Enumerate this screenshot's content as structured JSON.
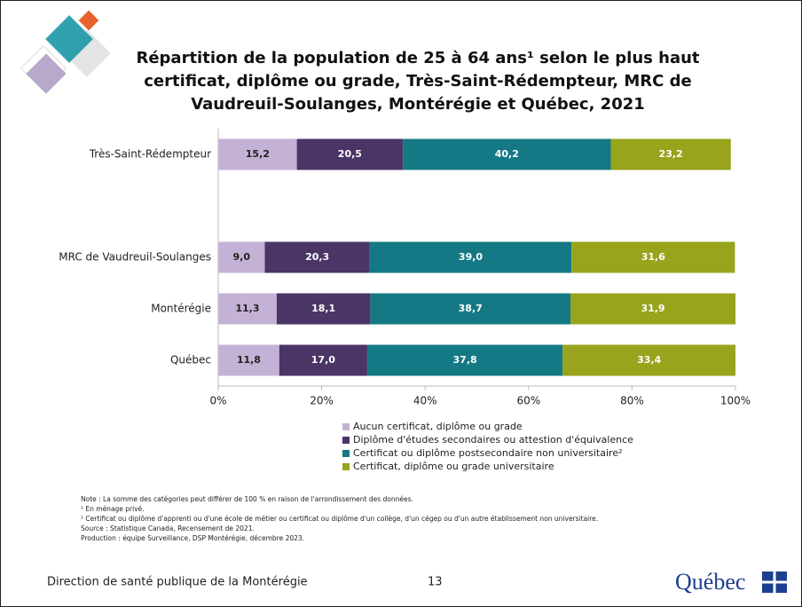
{
  "chart_data": {
    "type": "stacked-barh",
    "title": "Répartition de la population de 25 à 64 ans¹ selon le plus haut certificat, diplôme ou grade, Très-Saint-Rédempteur, MRC de Vaudreuil-Soulanges, Montérégie et Québec, 2021",
    "categories": [
      "Très-Saint-Rédempteur",
      null,
      "MRC de Vaudreuil-Soulanges",
      "Montérégie",
      "Québec"
    ],
    "series": [
      {
        "name": "Aucun certificat, diplôme ou grade",
        "color": "#c4b2d6",
        "label_color": "#222222",
        "values": [
          15.2,
          null,
          9.0,
          11.3,
          11.8
        ],
        "value_labels": [
          "15,2",
          null,
          "9,0",
          "11,3",
          "11,8"
        ]
      },
      {
        "name": "Diplôme d'études secondaires ou attestion d'équivalence",
        "color": "#4a3566",
        "label_color": "#ffffff",
        "values": [
          20.5,
          null,
          20.3,
          18.1,
          17.0
        ],
        "value_labels": [
          "20,5",
          null,
          "20,3",
          "18,1",
          "17,0"
        ]
      },
      {
        "name": "Certificat ou diplôme postsecondaire non universitaire²",
        "color": "#157985",
        "label_color": "#ffffff",
        "values": [
          40.2,
          null,
          39.0,
          38.7,
          37.8
        ],
        "value_labels": [
          "40,2",
          null,
          "39,0",
          "38,7",
          "37,8"
        ]
      },
      {
        "name": "Certificat, diplôme ou grade universitaire",
        "color": "#97a41c",
        "label_color": "#ffffff",
        "values": [
          23.2,
          null,
          31.6,
          31.9,
          33.4
        ],
        "value_labels": [
          "23,2",
          null,
          "31,6",
          "31,9",
          "33,4"
        ]
      }
    ],
    "xlim": [
      0,
      100
    ],
    "xticks": [
      {
        "value": 0,
        "label": "0%"
      },
      {
        "value": 20,
        "label": "20%"
      },
      {
        "value": 40,
        "label": "40%"
      },
      {
        "value": 60,
        "label": "60%"
      },
      {
        "value": 80,
        "label": "80%"
      },
      {
        "value": 100,
        "label": "100%"
      }
    ],
    "legend": "bottom"
  },
  "notes": [
    "Note : La somme des catégories peut différer de 100 % en raison de l'arrondissement des données.",
    "¹ En ménage privé.",
    "² Certificat ou diplôme d'apprenti ou d'une école de métier ou certificat ou diplôme d'un collège, d'un cégep ou d'un autre établissement non universitaire.",
    "Source : Statistique Canada, Recensement de 2021.",
    "Production : équipe Surveillance, DSP Montérégie, décembre 2023."
  ],
  "footer": {
    "organization": "Direction de santé publique de la Montérégie",
    "page": "13",
    "logo": "Québec"
  }
}
